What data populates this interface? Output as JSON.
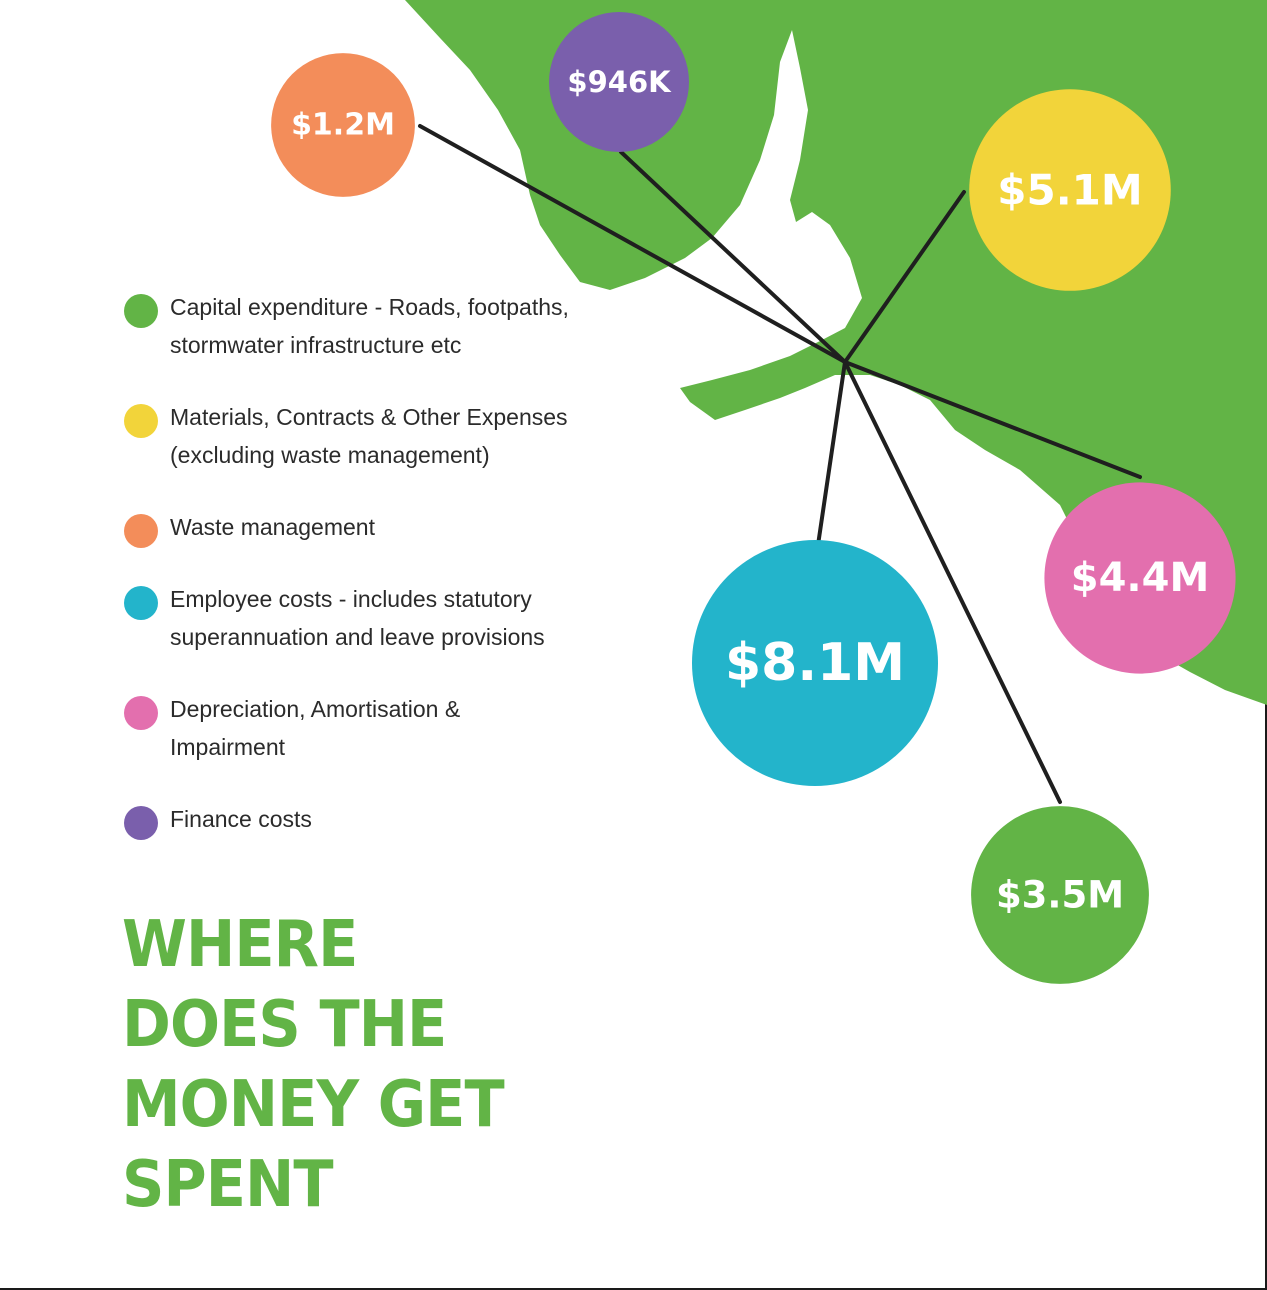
{
  "title": "WHERE\nDOES THE\nMONEY GET\nSPENT",
  "colors": {
    "map": "#62b446",
    "capital": "#62b446",
    "materials": "#f2d43a",
    "waste": "#f38d5a",
    "employee": "#23b4cb",
    "depreciation": "#e36fae",
    "finance": "#7a5fac",
    "line": "#1f1f1f"
  },
  "chart_data": {
    "type": "bubble",
    "categories": [
      "Capital expenditure - Roads, footpaths,\nstormwater infrastructure etc",
      "Materials, Contracts & Other Expenses\n(excluding waste management)",
      "Waste management",
      "Employee costs - includes statutory\nsuperannuation and leave provisions",
      "Depreciation, Amortisation &\nImpairment",
      "Finance costs"
    ],
    "values": [
      3.5,
      5.1,
      1.2,
      8.1,
      4.4,
      0.946
    ],
    "value_labels": [
      "$3.5M",
      "$5.1M",
      "$1.2M",
      "$8.1M",
      "$4.4M",
      "$946K"
    ],
    "color_keys": [
      "capital",
      "materials",
      "waste",
      "employee",
      "depreciation",
      "finance"
    ],
    "legend_position": "left"
  }
}
